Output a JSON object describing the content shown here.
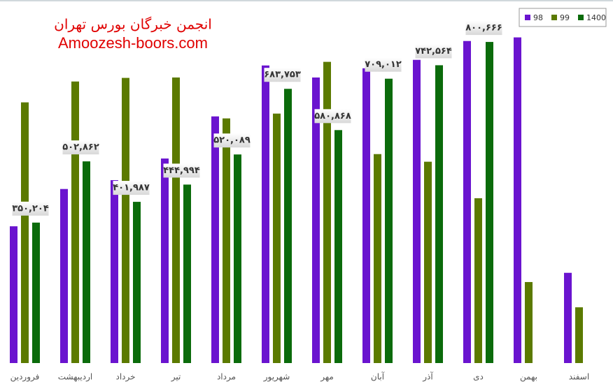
{
  "chart_data": {
    "type": "bar",
    "annotations": [
      "انجمن خبرگان بورس تهران",
      "Amoozesh-boors.com"
    ],
    "categories": [
      "فروردین",
      "اردیبهشت",
      "خرداد",
      "تیر",
      "مرداد",
      "شهریور",
      "مهر",
      "آبان",
      "آذر",
      "دی",
      "بهمن",
      "اسفند"
    ],
    "series": [
      {
        "name": "98",
        "color": "#6a14cf",
        "values": [
          341000,
          434000,
          456000,
          510000,
          615000,
          742000,
          712000,
          735000,
          756000,
          803000,
          812000,
          225000
        ]
      },
      {
        "name": "99",
        "color": "#5b7a00",
        "values": [
          650000,
          702000,
          711000,
          712000,
          610000,
          622000,
          751000,
          521000,
          502000,
          411000,
          202000,
          139000
        ]
      },
      {
        "name": "1400",
        "color": "#0b6b0b",
        "values": [
          350204,
          502862,
          401987,
          444994,
          520089,
          683753,
          580868,
          709012,
          742564,
          800666,
          null,
          null
        ],
        "value_labels": [
          "۳۵۰,۲۰۴",
          "۵۰۲,۸۶۲",
          "۴۰۱,۹۸۷",
          "۴۴۴,۹۹۴",
          "۵۲۰,۰۸۹",
          "۶۸۳,۷۵۳",
          "۵۸۰,۸۶۸",
          "۷۰۹,۰۱۲",
          "۷۴۲,۵۶۴",
          "۸۰۰,۶۶۶",
          null,
          null
        ]
      }
    ],
    "ylim": [
      0,
      900000
    ],
    "legend": "top-right"
  }
}
